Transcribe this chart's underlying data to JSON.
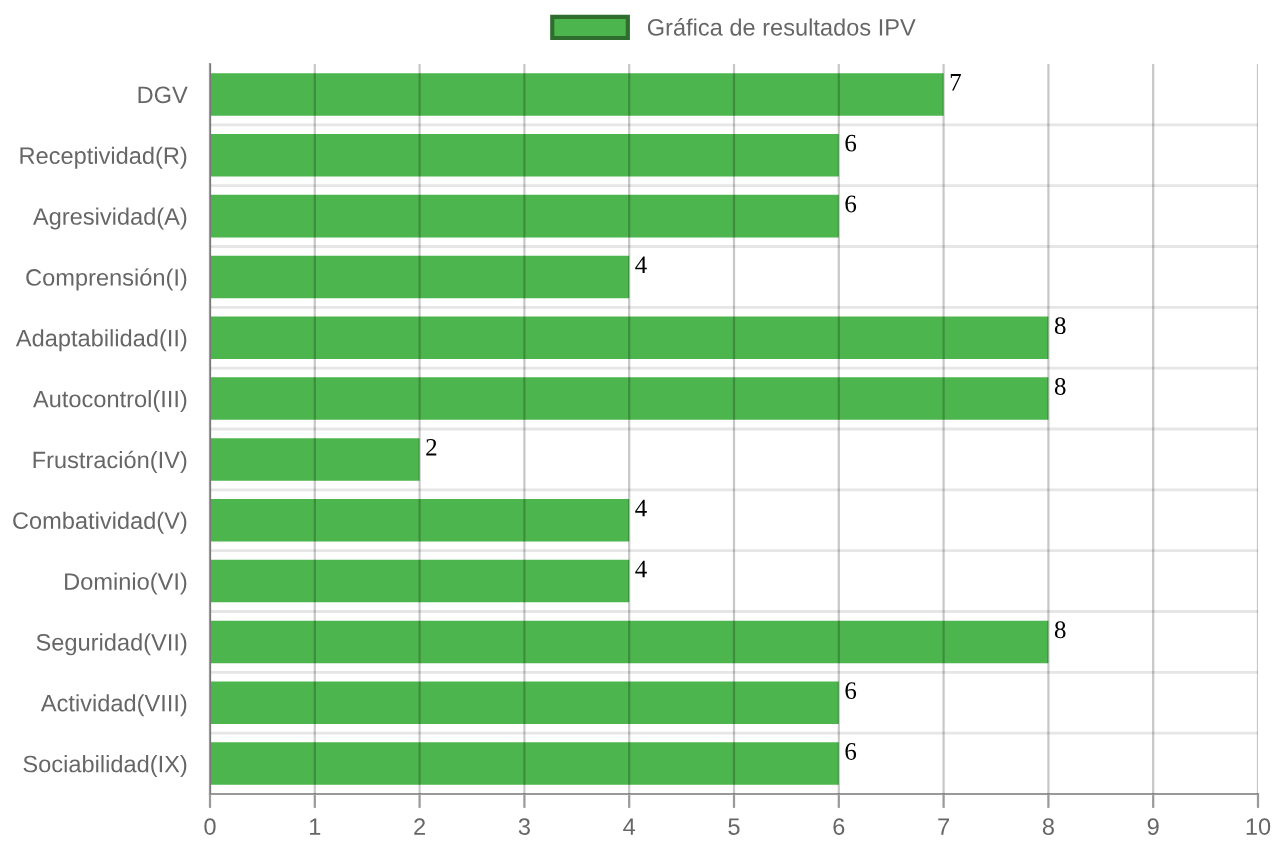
{
  "chart_data": {
    "type": "bar",
    "orientation": "horizontal",
    "categories": [
      "DGV",
      "Receptividad(R)",
      "Agresividad(A)",
      "Comprensión(I)",
      "Adaptabilidad(II)",
      "Autocontrol(III)",
      "Frustración(IV)",
      "Combatividad(V)",
      "Dominio(VI)",
      "Seguridad(VII)",
      "Actividad(VIII)",
      "Sociabilidad(IX)"
    ],
    "series": [
      {
        "name": "Gráfica de resultados IPV",
        "color": "#4db54d",
        "values": [
          7,
          6,
          6,
          4,
          8,
          8,
          2,
          4,
          4,
          8,
          6,
          6
        ]
      }
    ],
    "xlim": [
      0,
      10
    ],
    "xticks": [
      0,
      1,
      2,
      3,
      4,
      5,
      6,
      7,
      8,
      9,
      10
    ],
    "grid": true,
    "legend": "top",
    "data_labels": true
  }
}
